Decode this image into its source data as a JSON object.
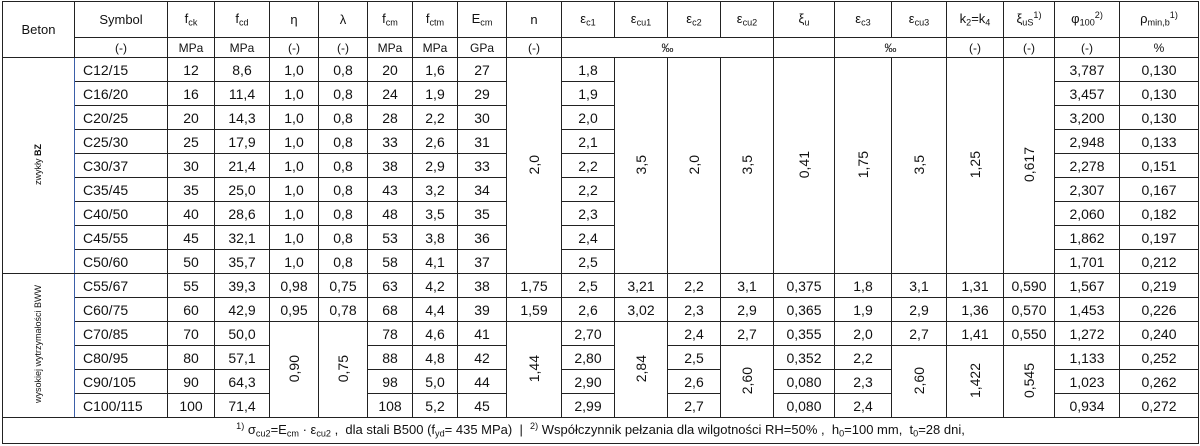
{
  "table": {
    "header": [
      [
        {
          "text": "Beton"
        }
      ],
      [
        {
          "text": "Symbol"
        }
      ],
      [
        {
          "text": "f"
        },
        {
          "sub": "ck"
        }
      ],
      [
        {
          "text": "f"
        },
        {
          "sub": "cd"
        }
      ],
      [
        {
          "text": "η"
        }
      ],
      [
        {
          "text": "λ"
        }
      ],
      [
        {
          "text": "f"
        },
        {
          "sub": "cm"
        }
      ],
      [
        {
          "text": "f"
        },
        {
          "sub": "ctm"
        }
      ],
      [
        {
          "text": "E"
        },
        {
          "sub": "cm"
        }
      ],
      [
        {
          "text": "n"
        }
      ],
      [
        {
          "text": "ε"
        },
        {
          "sub": "c1"
        }
      ],
      [
        {
          "text": "ε"
        },
        {
          "sub": "cu1"
        }
      ],
      [
        {
          "text": "ε"
        },
        {
          "sub": "c2"
        }
      ],
      [
        {
          "text": "ε"
        },
        {
          "sub": "cu2"
        }
      ],
      [
        {
          "text": "ξ"
        },
        {
          "sub": "u"
        }
      ],
      [
        {
          "text": "ε"
        },
        {
          "sub": "c3"
        }
      ],
      [
        {
          "text": "ε"
        },
        {
          "sub": "cu3"
        }
      ],
      [
        {
          "text": "k"
        },
        {
          "sub": "2"
        },
        {
          "text": "=k"
        },
        {
          "sub": "4"
        }
      ],
      [
        {
          "text": "ξ"
        },
        {
          "sub": "uS"
        },
        {
          "sup": "1)"
        }
      ],
      [
        {
          "text": "φ"
        },
        {
          "sub": "100"
        },
        {
          "sup": "2)"
        }
      ],
      [
        {
          "text": "ρ"
        },
        {
          "sub": "min,b"
        },
        {
          "sup": "1)"
        }
      ]
    ],
    "units": [
      "(-)",
      "MPa",
      "MPa",
      "(-)",
      "(-)",
      "MPa",
      "MPa",
      "GPa",
      "(-)",
      "‰",
      "‰",
      "(-)",
      "(-)",
      "(-)",
      "%"
    ],
    "groups": [
      {
        "label": [
          {
            "text": "zwykły "
          },
          {
            "bold": "BZ"
          }
        ],
        "rows": [
          [
            "C12/15",
            "12",
            "8,6",
            "1,0",
            "0,8",
            "20",
            "1,6",
            "27",
            "2,0",
            "1,8",
            "3,5",
            "2,0",
            "3,5",
            "0,41",
            "1,75",
            "3,5",
            "1,25",
            "0,617",
            "3,787",
            "0,130"
          ],
          [
            "C16/20",
            "16",
            "11,4",
            "1,0",
            "0,8",
            "24",
            "1,9",
            "29",
            "1,9",
            "3,457",
            "0,130"
          ],
          [
            "C20/25",
            "20",
            "14,3",
            "1,0",
            "0,8",
            "28",
            "2,2",
            "30",
            "2,0",
            "3,200",
            "0,130"
          ],
          [
            "C25/30",
            "25",
            "17,9",
            "1,0",
            "0,8",
            "33",
            "2,6",
            "31",
            "2,1",
            "2,948",
            "0,133"
          ],
          [
            "C30/37",
            "30",
            "21,4",
            "1,0",
            "0,8",
            "38",
            "2,9",
            "33",
            "2,2",
            "2,278",
            "0,151"
          ],
          [
            "C35/45",
            "35",
            "25,0",
            "1,0",
            "0,8",
            "43",
            "3,2",
            "34",
            "2,2",
            "2,307",
            "0,167"
          ],
          [
            "C40/50",
            "40",
            "28,6",
            "1,0",
            "0,8",
            "48",
            "3,5",
            "35",
            "2,3",
            "2,060",
            "0,182"
          ],
          [
            "C45/55",
            "45",
            "32,1",
            "1,0",
            "0,8",
            "53",
            "3,8",
            "36",
            "2,4",
            "1,862",
            "0,197"
          ],
          [
            "C50/60",
            "50",
            "35,7",
            "1,0",
            "0,8",
            "58",
            "4,1",
            "37",
            "2,5",
            "1,701",
            "0,212"
          ]
        ]
      },
      {
        "label": [
          {
            "text": "wysokiej wytrzymałości BWW"
          }
        ],
        "rows": [
          [
            "C55/67",
            "55",
            "39,3",
            "0,98",
            "0,75",
            "63",
            "4,2",
            "38",
            "1,75",
            "2,5",
            "3,21",
            "2,2",
            "3,1",
            "0,375",
            "1,8",
            "3,1",
            "1,31",
            "0,590",
            "1,567",
            "0,219"
          ],
          [
            "C60/75",
            "60",
            "42,9",
            "0,95",
            "0,78",
            "68",
            "4,4",
            "39",
            "1,59",
            "2,6",
            "3,02",
            "2,3",
            "2,9",
            "0,365",
            "1,9",
            "2,9",
            "1,36",
            "0,570",
            "1,453",
            "0,226"
          ],
          [
            "C70/85",
            "70",
            "50,0",
            "0,90",
            "0,75",
            "78",
            "4,6",
            "41",
            "1,44",
            "2,70",
            "2,84",
            "2,4",
            "2,7",
            "0,355",
            "2,0",
            "2,7",
            "1,41",
            "0,550",
            "1,272",
            "0,240"
          ],
          [
            "C80/95",
            "80",
            "57,1",
            "88",
            "4,8",
            "42",
            "2,80",
            "2,5",
            "2,60",
            "0,352",
            "2,2",
            "2,60",
            "1,422",
            "0,545",
            "1,133",
            "0,252"
          ],
          [
            "C90/105",
            "90",
            "64,3",
            "98",
            "5,0",
            "44",
            "2,90",
            "2,6",
            "0,080",
            "2,3",
            "1,023",
            "0,262"
          ],
          [
            "C100/115",
            "100",
            "71,4",
            "108",
            "5,2",
            "45",
            "2,99",
            "2,7",
            "0,080",
            "2,4",
            "0,934",
            "0,272"
          ]
        ]
      }
    ],
    "footnote": [
      {
        "sup": "1)"
      },
      {
        "text": " σ"
      },
      {
        "sub": "cu2"
      },
      {
        "text": "=E"
      },
      {
        "sub": "cm"
      },
      {
        "text": " · ε"
      },
      {
        "sub": "cu2"
      },
      {
        "text": " ,  dla stali B500 (f"
      },
      {
        "sub": "yd"
      },
      {
        "text": "= 435 MPa)  |  "
      },
      {
        "sup": "2)"
      },
      {
        "text": " Współczynnik pełzania dla wilgotności RH=50% ,  h"
      },
      {
        "sub": "0"
      },
      {
        "text": "=100 mm,  t"
      },
      {
        "sub": "0"
      },
      {
        "text": "=28 dni,"
      }
    ]
  }
}
